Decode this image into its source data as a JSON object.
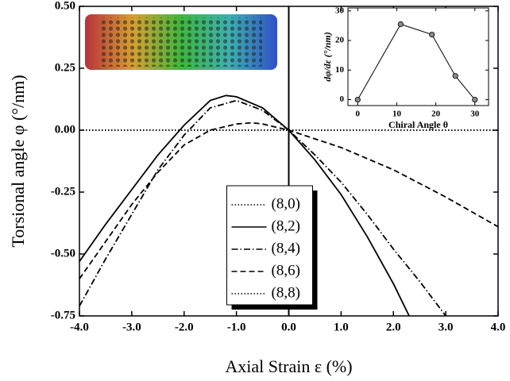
{
  "chart_data": [
    {
      "type": "line",
      "x_label": "Axial Strain ε  (%)",
      "y_label": "Torsional angle φ  (°/nm)",
      "xlim": [
        -4,
        4
      ],
      "ylim": [
        -0.75,
        0.5
      ],
      "xticks": [
        {
          "value": -4,
          "label": "-4.0"
        },
        {
          "value": -3,
          "label": "-3.0"
        },
        {
          "value": -2,
          "label": "-2.0"
        },
        {
          "value": -1,
          "label": "-1.0"
        },
        {
          "value": 0,
          "label": "0.0"
        },
        {
          "value": 1,
          "label": "1.0"
        },
        {
          "value": 2,
          "label": "2.0"
        },
        {
          "value": 3,
          "label": "3.0"
        },
        {
          "value": 4,
          "label": "4.0"
        }
      ],
      "yticks": [
        {
          "value": -0.75,
          "label": "-0.75"
        },
        {
          "value": -0.5,
          "label": "-0.50"
        },
        {
          "value": -0.25,
          "label": "-0.25"
        },
        {
          "value": 0,
          "label": "0.00"
        },
        {
          "value": 0.25,
          "label": "0.25"
        },
        {
          "value": 0.5,
          "label": "0.50"
        }
      ],
      "legend": "lower center",
      "series": [
        {
          "name": "(8,0)",
          "color": "#000000",
          "style": "dotted",
          "x": [
            -4,
            4
          ],
          "values": [
            0,
            0
          ]
        },
        {
          "name": "(8,2)",
          "color": "#000000",
          "style": "solid",
          "x": [
            -4,
            -3.5,
            -3,
            -2.5,
            -2,
            -1.5,
            -1.2,
            -1,
            -0.5,
            0,
            0.5,
            1,
            1.5,
            2,
            2.3
          ],
          "values": [
            -0.53,
            -0.38,
            -0.24,
            -0.1,
            0.02,
            0.12,
            0.14,
            0.135,
            0.09,
            0,
            -0.12,
            -0.26,
            -0.43,
            -0.62,
            -0.75
          ]
        },
        {
          "name": "(8,4)",
          "color": "#000000",
          "style": "dashdot",
          "x": [
            -4,
            -3.5,
            -3,
            -2.5,
            -2,
            -1.5,
            -1,
            -0.5,
            0,
            0.5,
            1,
            1.5,
            2,
            2.5,
            3
          ],
          "values": [
            -0.71,
            -0.52,
            -0.34,
            -0.16,
            -0.02,
            0.09,
            0.12,
            0.08,
            0,
            -0.1,
            -0.21,
            -0.34,
            -0.48,
            -0.61,
            -0.75
          ]
        },
        {
          "name": "(8,6)",
          "color": "#000000",
          "style": "dashed",
          "x": [
            -4,
            -3.5,
            -3,
            -2.5,
            -2,
            -1.5,
            -1,
            -0.7,
            -0.5,
            0,
            1,
            2,
            3,
            4
          ],
          "values": [
            -0.6,
            -0.45,
            -0.3,
            -0.17,
            -0.06,
            0,
            0.025,
            0.03,
            0.025,
            0,
            -0.07,
            -0.16,
            -0.27,
            -0.39
          ]
        },
        {
          "name": "(8,8)",
          "color": "#000000",
          "style": "dotted",
          "x": [
            -4,
            4
          ],
          "values": [
            0,
            0
          ]
        }
      ]
    },
    {
      "type": "line",
      "markers": true,
      "x_label": "Chiral Angle θ",
      "y_label": "dφ/dε  (°/nm)",
      "xlim": [
        -2.5,
        33.5
      ],
      "ylim": [
        -2,
        31
      ],
      "xticks": [
        0,
        10,
        20,
        30
      ],
      "yticks": [
        0,
        10,
        20,
        30
      ],
      "series": [
        {
          "color": "#000000",
          "style": "solid",
          "x": [
            0,
            11,
            19,
            25,
            30
          ],
          "values": [
            0,
            25.5,
            22,
            8,
            0
          ]
        }
      ]
    }
  ]
}
